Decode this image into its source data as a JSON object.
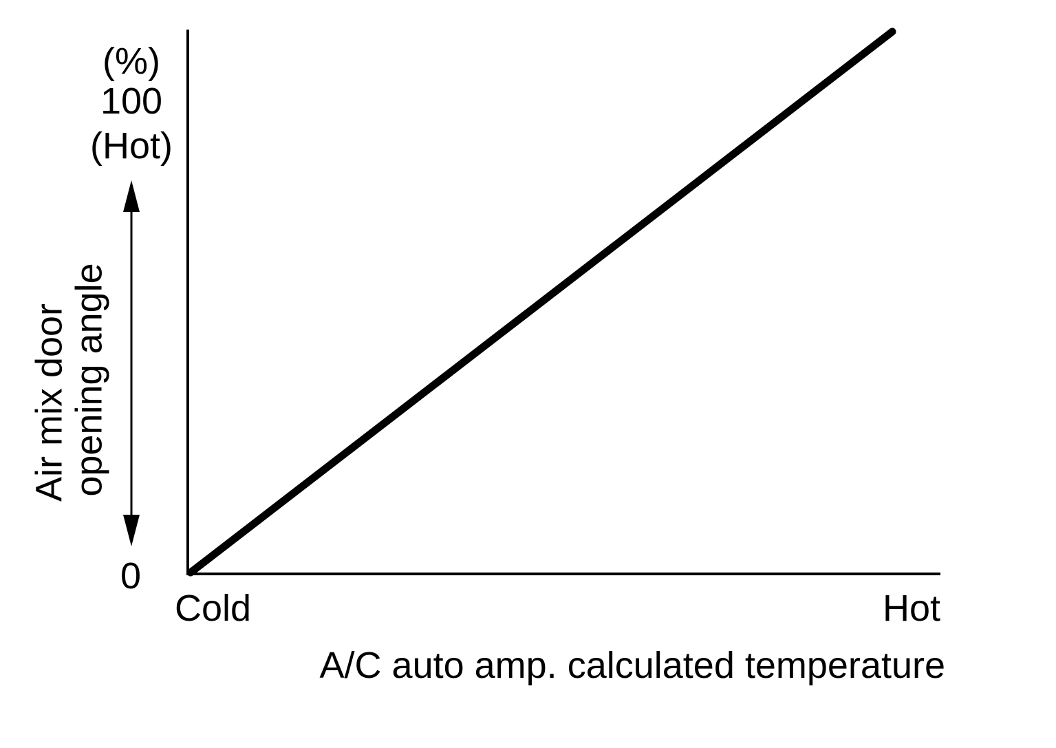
{
  "chart_data": {
    "type": "line",
    "title": "",
    "xlabel": "A/C auto amp. calculated temperature",
    "ylabel_lines": [
      "Air mix door",
      "opening angle"
    ],
    "x_tick_labels": {
      "min": "Cold",
      "max": "Hot"
    },
    "y_tick_labels": {
      "unit": "(%)",
      "max": "100",
      "max_note": "(Hot)",
      "min": "0"
    },
    "xlim": [
      0,
      100
    ],
    "ylim": [
      0,
      100
    ],
    "grid": false,
    "legend": "none",
    "series": [
      {
        "x": [
          0,
          100
        ],
        "y": [
          0,
          100
        ]
      }
    ],
    "colors": {
      "line": "#000000",
      "axis": "#000000"
    }
  }
}
